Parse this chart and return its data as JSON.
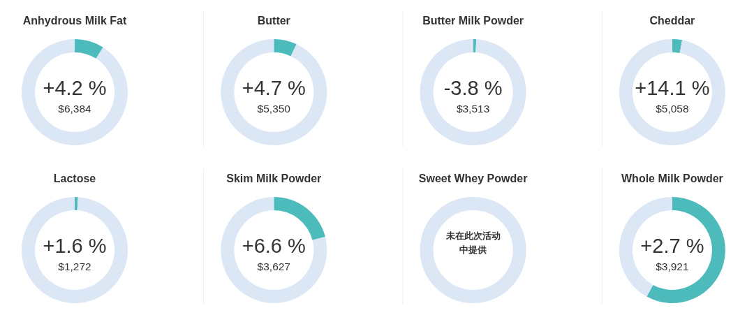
{
  "chart_data": [
    {
      "type": "donut",
      "title": "Anhydrous Milk Fat",
      "categories": [
        null,
        null
      ],
      "values": [
        9,
        91
      ],
      "colors": [
        "#4dbbbc",
        "#dce7f5"
      ],
      "annotations": [
        "+4.2 %",
        "$6,384"
      ]
    },
    {
      "type": "donut",
      "title": "Butter",
      "categories": [
        null,
        null
      ],
      "values": [
        7,
        93
      ],
      "colors": [
        "#4dbbbc",
        "#dce7f5"
      ],
      "annotations": [
        "+4.7 %",
        "$5,350"
      ]
    },
    {
      "type": "donut",
      "title": "Butter Milk Powder",
      "categories": [
        null,
        null
      ],
      "values": [
        1,
        99
      ],
      "colors": [
        "#4dbbbc",
        "#dce7f5"
      ],
      "annotations": [
        "-3.8 %",
        "$3,513"
      ]
    },
    {
      "type": "donut",
      "title": "Cheddar",
      "categories": [
        null,
        null
      ],
      "values": [
        3,
        97
      ],
      "colors": [
        "#4dbbbc",
        "#dce7f5"
      ],
      "annotations": [
        "+14.1 %",
        "$5,058"
      ]
    },
    {
      "type": "donut",
      "title": "Lactose",
      "categories": [
        null,
        null
      ],
      "values": [
        1,
        99
      ],
      "colors": [
        "#4dbbbc",
        "#dce7f5"
      ],
      "annotations": [
        "+1.6 %",
        "$1,272"
      ]
    },
    {
      "type": "donut",
      "title": "Skim Milk Powder",
      "categories": [
        null,
        null
      ],
      "values": [
        21,
        79
      ],
      "colors": [
        "#4dbbbc",
        "#dce7f5"
      ],
      "annotations": [
        "+6.6 %",
        "$3,627"
      ]
    },
    {
      "type": "other",
      "title": "Sweet Whey Powder",
      "annotations": [
        "未在此次活动中提供"
      ]
    },
    {
      "type": "donut",
      "title": "Whole Milk Powder",
      "categories": [
        null,
        null
      ],
      "values": [
        58,
        42
      ],
      "colors": [
        "#4dbbbc",
        "#dce7f5"
      ],
      "annotations": [
        "+2.7 %",
        "$3,921"
      ]
    }
  ]
}
